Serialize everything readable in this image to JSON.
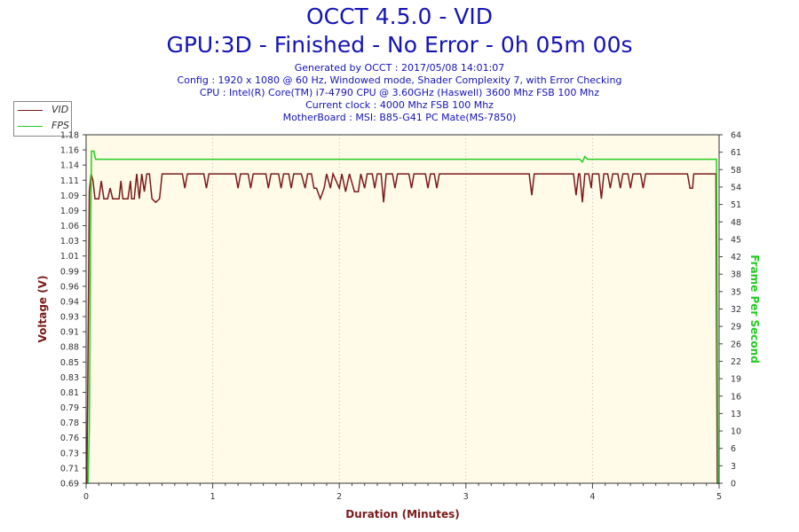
{
  "title": "OCCT 4.5.0 - VID",
  "subtitle": "GPU:3D - Finished - No Error - 0h 05m 00s",
  "info_lines": [
    "Generated by OCCT : 2017/05/08 14:01:07",
    "Config : 1920 x 1080 @ 60 Hz, Windowed mode, Shader Complexity 7, with Error Checking",
    "CPU : Intel(R) Core(TM) i7-4790 CPU @ 3.60GHz (Haswell) 3600 Mhz FSB 100 Mhz",
    "Current clock : 4000 Mhz FSB 100 Mhz",
    "MotherBoard : MSI: B85-G41 PC Mate(MS-7850)"
  ],
  "colors": {
    "title": "#1414b4",
    "vid": "#7a1a1a",
    "fps": "#22cc22",
    "plot_bg": "#fffbe8",
    "axis_label": "#7a1a1a",
    "grid": "#bbbbbb"
  },
  "chart_data": {
    "type": "line",
    "title": "OCCT 4.5.0 - VID",
    "xlabel": "Duration (Minutes)",
    "ylabel": "Voltage (V)",
    "y2label": "Frame Per Second",
    "xlim": [
      0,
      5
    ],
    "ylim": [
      0.69,
      1.18
    ],
    "y2lim": [
      0,
      64
    ],
    "x_ticks": [
      "0",
      "1",
      "2",
      "3",
      "4",
      "5"
    ],
    "y_ticks": [
      "0.69",
      "0.71",
      "0.73",
      "0.76",
      "0.78",
      "0.79",
      "0.81",
      "0.83",
      "0.85",
      "0.88",
      "0.91",
      "0.93",
      "0.94",
      "0.96",
      "0.99",
      "1.01",
      "1.03",
      "1.06",
      "1.09",
      "1.09",
      "1.11",
      "1.14",
      "1.16",
      "1.18"
    ],
    "y2_ticks": [
      "0",
      "3",
      "6",
      "10",
      "13",
      "16",
      "19",
      "22",
      "26",
      "29",
      "32",
      "35",
      "38",
      "42",
      "45",
      "48",
      "51",
      "54",
      "58",
      "61",
      "64"
    ],
    "grid": true,
    "legend": "top-left",
    "series": [
      {
        "name": "VID",
        "values": [
          [
            0,
            0.69
          ],
          [
            0.005,
            0.69
          ],
          [
            0.012,
            0.8
          ],
          [
            0.025,
            1.1
          ],
          [
            0.04,
            1.125
          ],
          [
            0.055,
            1.115
          ],
          [
            0.07,
            1.09
          ],
          [
            0.1,
            1.09
          ],
          [
            0.12,
            1.115
          ],
          [
            0.14,
            1.09
          ],
          [
            0.17,
            1.09
          ],
          [
            0.19,
            1.105
          ],
          [
            0.21,
            1.09
          ],
          [
            0.26,
            1.09
          ],
          [
            0.275,
            1.115
          ],
          [
            0.29,
            1.09
          ],
          [
            0.33,
            1.09
          ],
          [
            0.35,
            1.115
          ],
          [
            0.36,
            1.09
          ],
          [
            0.38,
            1.09
          ],
          [
            0.4,
            1.125
          ],
          [
            0.42,
            1.09
          ],
          [
            0.44,
            1.125
          ],
          [
            0.46,
            1.1
          ],
          [
            0.48,
            1.125
          ],
          [
            0.5,
            1.125
          ],
          [
            0.52,
            1.09
          ],
          [
            0.55,
            1.085
          ],
          [
            0.58,
            1.09
          ],
          [
            0.6,
            1.125
          ],
          [
            0.76,
            1.125
          ],
          [
            0.78,
            1.105
          ],
          [
            0.8,
            1.125
          ],
          [
            0.93,
            1.125
          ],
          [
            0.95,
            1.105
          ],
          [
            0.97,
            1.125
          ],
          [
            1.18,
            1.125
          ],
          [
            1.2,
            1.105
          ],
          [
            1.22,
            1.125
          ],
          [
            1.28,
            1.125
          ],
          [
            1.3,
            1.105
          ],
          [
            1.32,
            1.125
          ],
          [
            1.42,
            1.125
          ],
          [
            1.44,
            1.105
          ],
          [
            1.46,
            1.125
          ],
          [
            1.52,
            1.125
          ],
          [
            1.54,
            1.105
          ],
          [
            1.56,
            1.125
          ],
          [
            1.6,
            1.125
          ],
          [
            1.62,
            1.105
          ],
          [
            1.64,
            1.125
          ],
          [
            1.7,
            1.125
          ],
          [
            1.73,
            1.105
          ],
          [
            1.75,
            1.125
          ],
          [
            1.78,
            1.125
          ],
          [
            1.8,
            1.105
          ],
          [
            1.82,
            1.105
          ],
          [
            1.85,
            1.09
          ],
          [
            1.88,
            1.105
          ],
          [
            1.9,
            1.125
          ],
          [
            1.93,
            1.105
          ],
          [
            1.95,
            1.125
          ],
          [
            2.0,
            1.105
          ],
          [
            2.02,
            1.125
          ],
          [
            2.05,
            1.1
          ],
          [
            2.08,
            1.125
          ],
          [
            2.12,
            1.1
          ],
          [
            2.15,
            1.1
          ],
          [
            2.17,
            1.125
          ],
          [
            2.2,
            1.105
          ],
          [
            2.22,
            1.125
          ],
          [
            2.26,
            1.125
          ],
          [
            2.28,
            1.105
          ],
          [
            2.3,
            1.125
          ],
          [
            2.33,
            1.125
          ],
          [
            2.35,
            1.085
          ],
          [
            2.37,
            1.125
          ],
          [
            2.42,
            1.125
          ],
          [
            2.44,
            1.105
          ],
          [
            2.46,
            1.125
          ],
          [
            2.55,
            1.125
          ],
          [
            2.57,
            1.105
          ],
          [
            2.59,
            1.125
          ],
          [
            2.68,
            1.125
          ],
          [
            2.7,
            1.105
          ],
          [
            2.72,
            1.125
          ],
          [
            2.75,
            1.125
          ],
          [
            2.77,
            1.105
          ],
          [
            2.79,
            1.125
          ],
          [
            3.5,
            1.125
          ],
          [
            3.52,
            1.095
          ],
          [
            3.54,
            1.125
          ],
          [
            3.85,
            1.125
          ],
          [
            3.87,
            1.095
          ],
          [
            3.89,
            1.125
          ],
          [
            3.9,
            1.125
          ],
          [
            3.92,
            1.085
          ],
          [
            3.94,
            1.125
          ],
          [
            3.97,
            1.125
          ],
          [
            3.99,
            1.105
          ],
          [
            4.0,
            1.125
          ],
          [
            4.05,
            1.125
          ],
          [
            4.07,
            1.09
          ],
          [
            4.09,
            1.125
          ],
          [
            4.12,
            1.125
          ],
          [
            4.14,
            1.105
          ],
          [
            4.16,
            1.125
          ],
          [
            4.2,
            1.125
          ],
          [
            4.22,
            1.105
          ],
          [
            4.24,
            1.125
          ],
          [
            4.28,
            1.125
          ],
          [
            4.3,
            1.105
          ],
          [
            4.32,
            1.125
          ],
          [
            4.38,
            1.125
          ],
          [
            4.4,
            1.105
          ],
          [
            4.42,
            1.125
          ],
          [
            4.55,
            1.125
          ],
          [
            4.6,
            1.125
          ],
          [
            4.75,
            1.125
          ],
          [
            4.77,
            1.105
          ],
          [
            4.79,
            1.105
          ],
          [
            4.8,
            1.125
          ],
          [
            4.975,
            1.125
          ],
          [
            4.985,
            0.69
          ],
          [
            5,
            0.69
          ]
        ]
      },
      {
        "name": "FPS",
        "axis": "right",
        "values": [
          [
            0,
            0
          ],
          [
            0.015,
            0
          ],
          [
            0.025,
            10
          ],
          [
            0.035,
            45
          ],
          [
            0.042,
            61
          ],
          [
            0.06,
            61
          ],
          [
            0.075,
            59.5
          ],
          [
            3.9,
            59.5
          ],
          [
            3.92,
            59
          ],
          [
            3.94,
            60
          ],
          [
            3.96,
            59.5
          ],
          [
            4.98,
            59.5
          ],
          [
            4.99,
            0
          ],
          [
            5,
            0
          ]
        ]
      }
    ]
  }
}
